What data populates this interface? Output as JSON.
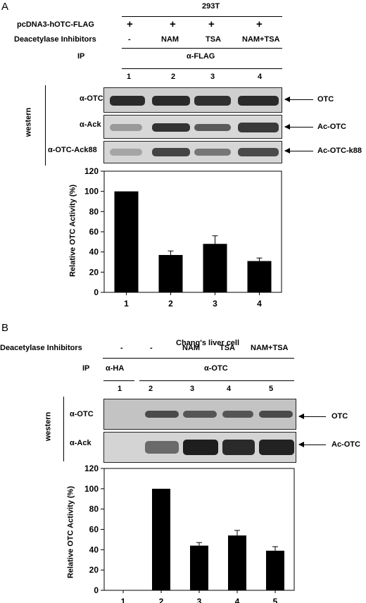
{
  "panelA": {
    "letter": "A",
    "cell_line": "293T",
    "construct_label": "pcDNA3-hOTC-FLAG",
    "construct_marks": [
      "+",
      "+",
      "+",
      "+"
    ],
    "inhibitor_label": "Deacetylase Inhibitors",
    "inhibitors": [
      "-",
      "NAM",
      "TSA",
      "NAM+TSA"
    ],
    "ip_label": "IP",
    "ip_antibody": "α-FLAG",
    "lanes": [
      "1",
      "2",
      "3",
      "4"
    ],
    "western_label": "western",
    "blots": [
      {
        "antibody": "α-OTC",
        "target": "OTC"
      },
      {
        "antibody": "α-Ack",
        "target": "Ac-OTC"
      },
      {
        "antibody": "α-OTC-Ack88",
        "target": "Ac-OTC-k88"
      }
    ]
  },
  "panelB": {
    "letter": "B",
    "cell_line": "Chang's liver cell",
    "inhibitor_label": "Deacetylase Inhibitors",
    "inhibitors": [
      "-",
      "-",
      "NAM",
      "TSA",
      "NAM+TSA"
    ],
    "ip_label": "IP",
    "ip_antibodies": [
      "α-HA",
      "α-OTC"
    ],
    "lanes": [
      "1",
      "2",
      "3",
      "4",
      "5"
    ],
    "western_label": "western",
    "blots": [
      {
        "antibody": "α-OTC",
        "target": "OTC"
      },
      {
        "antibody": "α-Ack",
        "target": "Ac-OTC"
      }
    ]
  },
  "chart_data": [
    {
      "type": "bar",
      "categories": [
        "1",
        "2",
        "3",
        "4"
      ],
      "values": [
        100,
        37,
        48,
        31
      ],
      "errors": [
        0,
        4,
        8,
        3
      ],
      "title": "",
      "xlabel": "",
      "ylabel": "Relative OTC Activity (%)",
      "ylim": [
        0,
        120
      ],
      "yticks": [
        0,
        20,
        40,
        60,
        80,
        100,
        120
      ],
      "grid": false,
      "bar_color": "#000000"
    },
    {
      "type": "bar",
      "categories": [
        "1",
        "2",
        "3",
        "4",
        "5"
      ],
      "values": [
        0,
        100,
        44,
        54,
        39
      ],
      "errors": [
        0,
        0,
        3,
        5,
        4
      ],
      "title": "",
      "xlabel": "",
      "ylabel": "Relative OTC Activity (%)",
      "ylim": [
        0,
        120
      ],
      "yticks": [
        0,
        20,
        40,
        60,
        80,
        100,
        120
      ],
      "grid": false,
      "bar_color": "#000000"
    }
  ]
}
